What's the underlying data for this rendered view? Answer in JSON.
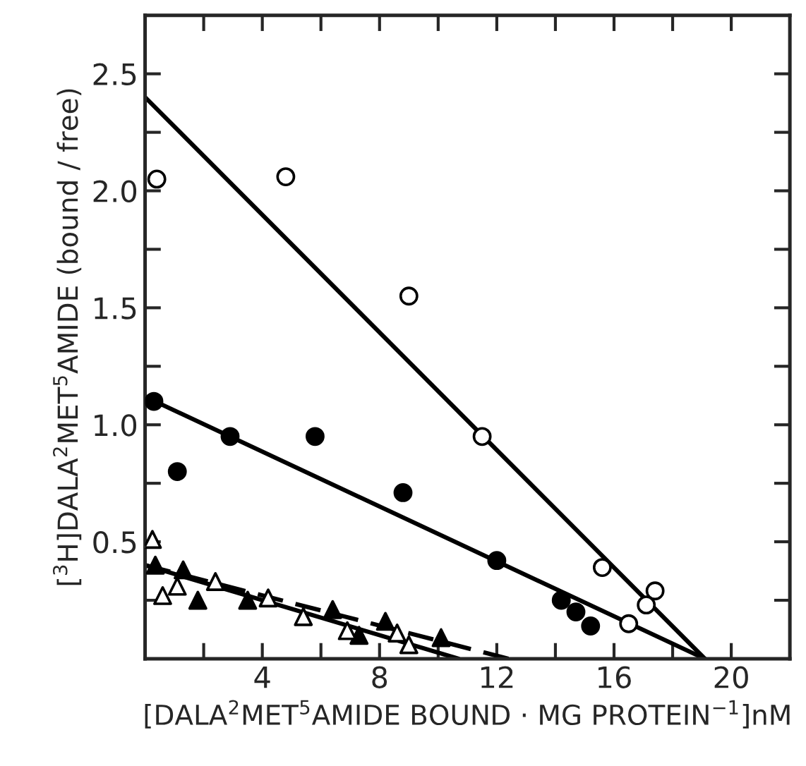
{
  "chart_data": {
    "type": "scatter",
    "xlabel": "[DALA$^{2}$MET$^{5}$AMIDE BOUND · MG PROTEIN$^{−1}$]nM",
    "ylabel": "[$^{3}$H]DALA$^{2}$MET$^{5}$AMIDE (bound / free)",
    "xlim": [
      0,
      22
    ],
    "ylim": [
      0,
      2.75
    ],
    "xticks": [
      {
        "value": 2,
        "label": null
      },
      4,
      {
        "value": 6,
        "label": null
      },
      8,
      {
        "value": 10,
        "label": null
      },
      12,
      {
        "value": 14,
        "label": null
      },
      16,
      {
        "value": 18,
        "label": null
      },
      20
    ],
    "yticks": [
      {
        "value": 0.25,
        "label": null
      },
      0.5,
      {
        "value": 0.75,
        "label": null
      },
      {
        "value": 1,
        "label": "1.0"
      },
      {
        "value": 1.25,
        "label": null
      },
      1.5,
      {
        "value": 1.75,
        "label": null
      },
      {
        "value": 2,
        "label": "2.0"
      },
      {
        "value": 2.25,
        "label": null
      },
      2.5
    ],
    "grid": false,
    "legend": false,
    "series": [
      {
        "marker": "circle",
        "color": "#ffffff",
        "x": [
          0.4,
          4.8,
          9.0,
          11.5,
          15.6,
          16.5,
          17.1,
          17.4
        ],
        "values": [
          2.05,
          2.06,
          1.55,
          0.95,
          0.39,
          0.15,
          0.23,
          0.29
        ]
      },
      {
        "marker": "circle",
        "color": "#000000",
        "x": [
          0.3,
          1.1,
          2.9,
          5.8,
          8.8,
          12.0,
          14.2,
          14.7,
          15.2
        ],
        "values": [
          1.1,
          0.8,
          0.95,
          0.95,
          0.71,
          0.42,
          0.25,
          0.2,
          0.14
        ]
      },
      {
        "marker": "triangle",
        "color": "#000000",
        "x": [
          0.35,
          1.3,
          1.8,
          3.5,
          6.4,
          7.3,
          8.2,
          10.1
        ],
        "values": [
          0.4,
          0.38,
          0.25,
          0.25,
          0.21,
          0.1,
          0.16,
          0.09
        ]
      },
      {
        "marker": "triangle",
        "color": "#ffffff",
        "x": [
          0.25,
          0.6,
          1.1,
          2.4,
          4.2,
          5.4,
          6.9,
          8.6,
          9.0
        ],
        "values": [
          0.51,
          0.27,
          0.31,
          0.33,
          0.26,
          0.18,
          0.12,
          0.11,
          0.06
        ]
      },
      {
        "type": "line",
        "line_style": "solid",
        "color": "#000000",
        "x": [
          0,
          19.1
        ],
        "values": [
          2.4,
          0
        ]
      },
      {
        "type": "line",
        "line_style": "solid",
        "color": "#000000",
        "x": [
          0,
          19.1
        ],
        "values": [
          1.12,
          0
        ]
      },
      {
        "type": "line",
        "line_style": "dashed",
        "color": "#000000",
        "x": [
          0,
          12.4
        ],
        "values": [
          0.4,
          0
        ]
      },
      {
        "type": "line",
        "line_style": "solid",
        "color": "#000000",
        "x": [
          0,
          10.7
        ],
        "values": [
          0.4,
          0
        ]
      }
    ]
  }
}
